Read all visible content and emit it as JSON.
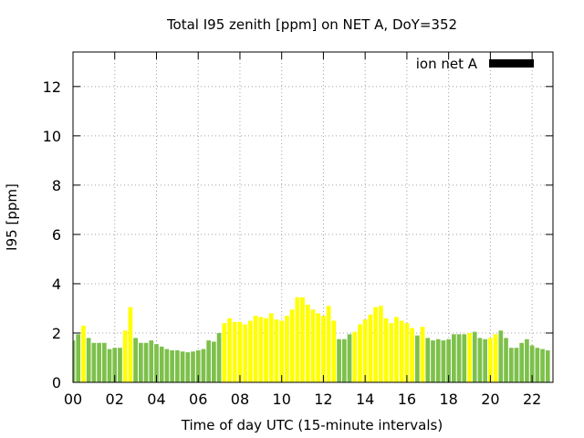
{
  "chart_data": {
    "type": "bar",
    "title": "Total I95 zenith [ppm] on NET A, DoY=352",
    "xlabel": "Time of day UTC (15-minute intervals)",
    "ylabel": "I95 [ppm]",
    "ylim": [
      0,
      13.4
    ],
    "xlim": [
      0,
      23
    ],
    "yticks": [
      0,
      2,
      4,
      6,
      8,
      10,
      12
    ],
    "xticks": [
      "00",
      "02",
      "04",
      "06",
      "08",
      "10",
      "12",
      "14",
      "16",
      "18",
      "20",
      "22"
    ],
    "grid": true,
    "legend": {
      "label": "ion net A",
      "color": "#000000",
      "position": "top-right"
    },
    "bar_colors": {
      "green": "#7dc04b",
      "yellow": "#ffff00"
    },
    "series": [
      {
        "x": [
          0.0,
          0.25,
          0.5,
          0.75,
          1.0,
          1.25,
          1.5,
          1.75,
          2.0,
          2.25,
          2.5,
          2.75,
          3.0,
          3.25,
          3.5,
          3.75,
          4.0,
          4.25,
          4.5,
          4.75,
          5.0,
          5.25,
          5.5,
          5.75,
          6.0,
          6.25,
          6.5,
          6.75,
          7.0,
          7.25,
          7.5,
          7.75,
          8.0,
          8.25,
          8.5,
          8.75,
          9.0,
          9.25,
          9.5,
          9.75,
          10.0,
          10.25,
          10.5,
          10.75,
          11.0,
          11.25,
          11.5,
          11.75,
          12.0,
          12.25,
          12.5,
          12.75,
          13.0,
          13.25,
          13.5,
          13.75,
          14.0,
          14.25,
          14.5,
          14.75,
          15.0,
          15.25,
          15.5,
          15.75,
          16.0,
          16.25,
          16.5,
          16.75,
          17.0,
          17.25,
          17.5,
          17.75,
          18.0,
          18.25,
          18.5,
          18.75,
          19.0,
          19.25,
          19.5,
          19.75,
          20.0,
          20.25,
          20.5,
          20.75,
          21.0,
          21.25,
          21.5,
          21.75,
          22.0,
          22.25,
          22.5,
          22.75
        ],
        "values": [
          1.7,
          1.95,
          2.3,
          1.8,
          1.6,
          1.6,
          1.6,
          1.35,
          1.4,
          1.4,
          2.1,
          3.05,
          1.8,
          1.6,
          1.6,
          1.7,
          1.55,
          1.45,
          1.35,
          1.3,
          1.3,
          1.25,
          1.22,
          1.25,
          1.3,
          1.35,
          1.7,
          1.65,
          2.0,
          2.4,
          2.6,
          2.45,
          2.45,
          2.35,
          2.5,
          2.7,
          2.65,
          2.6,
          2.8,
          2.55,
          2.5,
          2.7,
          2.95,
          3.45,
          3.45,
          3.15,
          2.95,
          2.8,
          2.7,
          3.1,
          2.5,
          1.75,
          1.75,
          1.95,
          2.05,
          2.35,
          2.55,
          2.75,
          3.05,
          3.1,
          2.6,
          2.4,
          2.65,
          2.5,
          2.4,
          2.2,
          1.9,
          2.25,
          1.8,
          1.7,
          1.75,
          1.7,
          1.75,
          1.95,
          1.95,
          1.95,
          2.0,
          2.05,
          1.8,
          1.75,
          1.8,
          1.95,
          2.1,
          1.8,
          1.4,
          1.4,
          1.6,
          1.75,
          1.5,
          1.4,
          1.35,
          1.3
        ],
        "colors": [
          "green",
          "green",
          "yellow",
          "green",
          "green",
          "green",
          "green",
          "green",
          "green",
          "green",
          "yellow",
          "yellow",
          "green",
          "green",
          "green",
          "green",
          "green",
          "green",
          "green",
          "green",
          "green",
          "green",
          "green",
          "green",
          "green",
          "green",
          "green",
          "green",
          "green",
          "yellow",
          "yellow",
          "yellow",
          "yellow",
          "yellow",
          "yellow",
          "yellow",
          "yellow",
          "yellow",
          "yellow",
          "yellow",
          "yellow",
          "yellow",
          "yellow",
          "yellow",
          "yellow",
          "yellow",
          "yellow",
          "yellow",
          "yellow",
          "yellow",
          "yellow",
          "green",
          "green",
          "green",
          "yellow",
          "yellow",
          "yellow",
          "yellow",
          "yellow",
          "yellow",
          "yellow",
          "yellow",
          "yellow",
          "yellow",
          "yellow",
          "yellow",
          "green",
          "yellow",
          "green",
          "green",
          "green",
          "green",
          "green",
          "green",
          "green",
          "green",
          "yellow",
          "green",
          "green",
          "green",
          "yellow",
          "yellow",
          "green",
          "green",
          "green",
          "green",
          "green",
          "green",
          "green",
          "green",
          "green",
          "green"
        ]
      }
    ]
  }
}
